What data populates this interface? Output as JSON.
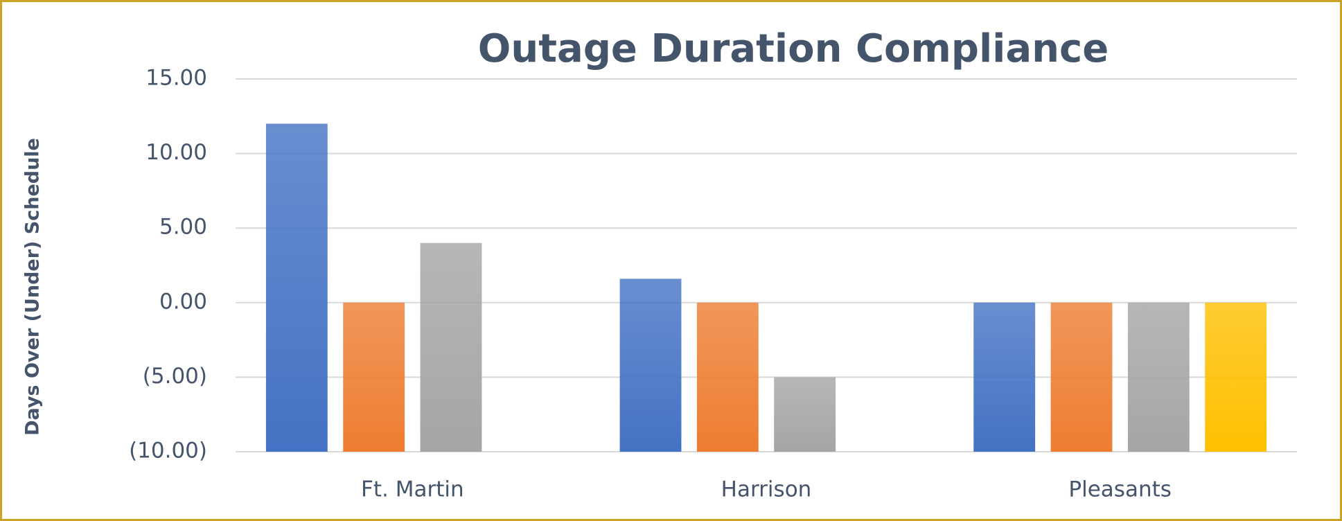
{
  "chart_data": {
    "type": "bar",
    "title": "Outage Duration Compliance",
    "y_label": "Days Over (Under) Schedule",
    "categories": [
      "Ft. Martin",
      "Harrison",
      "Pleasants"
    ],
    "series": [
      {
        "color": "#4472c4",
        "values": [
          12,
          1.6,
          0
        ]
      },
      {
        "color": "#ed7d31",
        "values": [
          0,
          0,
          0
        ]
      },
      {
        "color": "#a5a5a5",
        "values": [
          4,
          -5,
          0
        ]
      },
      {
        "color": "#ffc000",
        "values": [
          null,
          null,
          0
        ]
      }
    ],
    "ylim": [
      -10,
      15
    ],
    "yticks": [
      {
        "value": -10,
        "label": "(10.00)"
      },
      {
        "value": -5,
        "label": "(5.00)"
      },
      {
        "value": 0,
        "label": "0.00"
      },
      {
        "value": 5,
        "label": "5.00"
      },
      {
        "value": 10,
        "label": "10.00"
      },
      {
        "value": 15,
        "label": "15.00"
      }
    ],
    "grid": true
  }
}
